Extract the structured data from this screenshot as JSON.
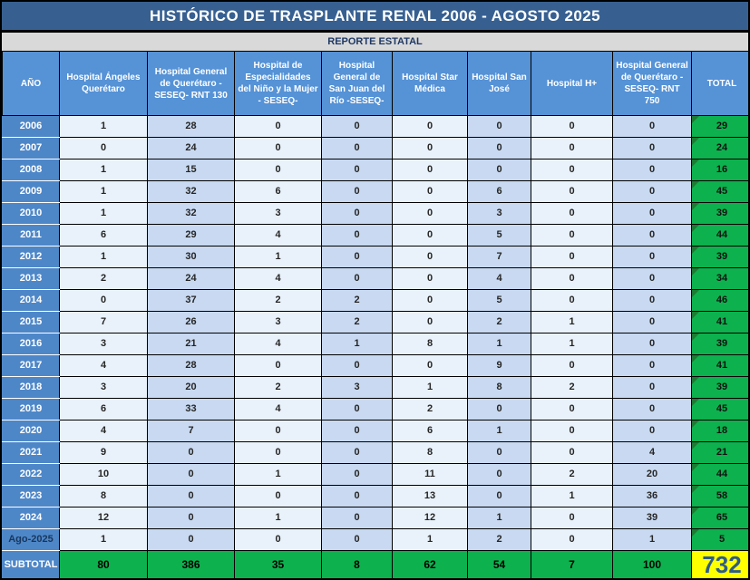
{
  "report": {
    "title": "HISTÓRICO DE TRASPLANTE RENAL 2006 - AGOSTO 2025",
    "subtitle": "REPORTE ESTATAL",
    "table": {
      "columns": [
        "AÑO",
        "Hospital Ángeles Querétaro",
        "Hospital General de Querétaro - SESEQ- RNT 130",
        "Hospital de Especialidades del Niño y la Mujer - SESEQ-",
        "Hospital General de San Juan del Río -SESEQ-",
        "Hospital Star Médica",
        "Hospital San José",
        "Hospital H+",
        "Hospital General de Querétaro - SESEQ- RNT 750",
        "TOTAL"
      ],
      "rows": [
        {
          "year": "2006",
          "values": [
            1,
            28,
            0,
            0,
            0,
            0,
            0,
            0
          ],
          "total": 29
        },
        {
          "year": "2007",
          "values": [
            0,
            24,
            0,
            0,
            0,
            0,
            0,
            0
          ],
          "total": 24
        },
        {
          "year": "2008",
          "values": [
            1,
            15,
            0,
            0,
            0,
            0,
            0,
            0
          ],
          "total": 16
        },
        {
          "year": "2009",
          "values": [
            1,
            32,
            6,
            0,
            0,
            6,
            0,
            0
          ],
          "total": 45
        },
        {
          "year": "2010",
          "values": [
            1,
            32,
            3,
            0,
            0,
            3,
            0,
            0
          ],
          "total": 39
        },
        {
          "year": "2011",
          "values": [
            6,
            29,
            4,
            0,
            0,
            5,
            0,
            0
          ],
          "total": 44
        },
        {
          "year": "2012",
          "values": [
            1,
            30,
            1,
            0,
            0,
            7,
            0,
            0
          ],
          "total": 39
        },
        {
          "year": "2013",
          "values": [
            2,
            24,
            4,
            0,
            0,
            4,
            0,
            0
          ],
          "total": 34
        },
        {
          "year": "2014",
          "values": [
            0,
            37,
            2,
            2,
            0,
            5,
            0,
            0
          ],
          "total": 46
        },
        {
          "year": "2015",
          "values": [
            7,
            26,
            3,
            2,
            0,
            2,
            1,
            0
          ],
          "total": 41
        },
        {
          "year": "2016",
          "values": [
            3,
            21,
            4,
            1,
            8,
            1,
            1,
            0
          ],
          "total": 39
        },
        {
          "year": "2017",
          "values": [
            4,
            28,
            0,
            0,
            0,
            9,
            0,
            0
          ],
          "total": 41
        },
        {
          "year": "2018",
          "values": [
            3,
            20,
            2,
            3,
            1,
            8,
            2,
            0
          ],
          "total": 39
        },
        {
          "year": "2019",
          "values": [
            6,
            33,
            4,
            0,
            2,
            0,
            0,
            0
          ],
          "total": 45
        },
        {
          "year": "2020",
          "values": [
            4,
            7,
            0,
            0,
            6,
            1,
            0,
            0
          ],
          "total": 18
        },
        {
          "year": "2021",
          "values": [
            9,
            0,
            0,
            0,
            8,
            0,
            0,
            4
          ],
          "total": 21
        },
        {
          "year": "2022",
          "values": [
            10,
            0,
            1,
            0,
            11,
            0,
            2,
            20
          ],
          "total": 44
        },
        {
          "year": "2023",
          "values": [
            8,
            0,
            0,
            0,
            13,
            0,
            1,
            36
          ],
          "total": 58
        },
        {
          "year": "2024",
          "values": [
            12,
            0,
            1,
            0,
            12,
            1,
            0,
            39
          ],
          "total": 65
        },
        {
          "year": "Ago-2025",
          "values": [
            1,
            0,
            0,
            0,
            1,
            2,
            0,
            1
          ],
          "total": 5
        }
      ],
      "subtotal": {
        "label": "SUBTOTAL",
        "values": [
          80,
          386,
          35,
          8,
          62,
          54,
          7,
          100
        ],
        "total": 732
      }
    },
    "colors": {
      "title_bg": "#376091",
      "subtitle_bg": "#D9D9D9",
      "subtitle_text": "#1F3864",
      "header_bg": "#5592D6",
      "year_bg": "#4E87C8",
      "cell_light": "#E9F2FA",
      "cell_dark": "#C8D9F1",
      "total_green": "#0DB14E",
      "total_flag_triangle": "#1E7B33",
      "grand_total_bg": "#FFFF00",
      "grand_total_text": "#2E5C8A"
    }
  }
}
